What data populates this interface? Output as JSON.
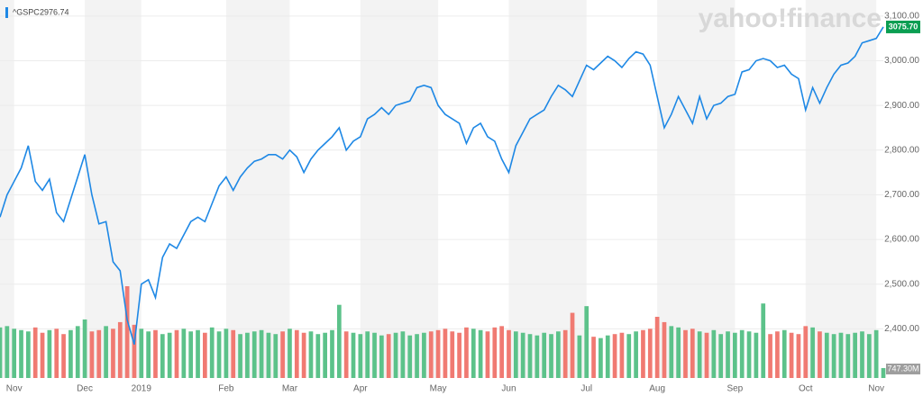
{
  "chart_data": {
    "type": "line",
    "watermark": "yahoo!finance",
    "categories": [
      null,
      null,
      "Nov",
      null,
      null,
      null,
      null,
      null,
      null,
      null,
      null,
      null,
      "Dec",
      null,
      null,
      null,
      null,
      null,
      null,
      null,
      "2019",
      null,
      null,
      null,
      null,
      null,
      null,
      null,
      null,
      null,
      null,
      null,
      "Feb",
      null,
      null,
      null,
      null,
      null,
      null,
      null,
      null,
      "Mar",
      null,
      null,
      null,
      null,
      null,
      null,
      null,
      null,
      null,
      "Apr",
      null,
      null,
      null,
      null,
      null,
      null,
      null,
      null,
      null,
      null,
      "May",
      null,
      null,
      null,
      null,
      null,
      null,
      null,
      null,
      null,
      "Jun",
      null,
      null,
      null,
      null,
      null,
      null,
      null,
      null,
      null,
      null,
      "Jul",
      null,
      null,
      null,
      null,
      null,
      null,
      null,
      null,
      null,
      "Aug",
      null,
      null,
      null,
      null,
      null,
      null,
      null,
      null,
      null,
      null,
      "Sep",
      null,
      null,
      null,
      null,
      null,
      null,
      null,
      null,
      null,
      "Oct",
      null,
      null,
      null,
      null,
      null,
      null,
      null,
      null,
      null,
      "Nov",
      null
    ],
    "series": [
      {
        "name": "^GSPC",
        "color": "#1e88e5",
        "values": [
          2650,
          2700,
          2730,
          2760,
          2810,
          2730,
          2710,
          2735,
          2660,
          2640,
          2690,
          2740,
          2790,
          2700,
          2635,
          2640,
          2550,
          2530,
          2420,
          2365,
          2500,
          2510,
          2470,
          2560,
          2590,
          2580,
          2610,
          2640,
          2650,
          2640,
          2680,
          2720,
          2740,
          2710,
          2740,
          2760,
          2775,
          2780,
          2790,
          2790,
          2780,
          2800,
          2785,
          2750,
          2780,
          2800,
          2815,
          2830,
          2850,
          2800,
          2820,
          2830,
          2870,
          2880,
          2895,
          2880,
          2900,
          2905,
          2910,
          2940,
          2945,
          2940,
          2900,
          2880,
          2870,
          2860,
          2815,
          2850,
          2860,
          2830,
          2820,
          2780,
          2750,
          2810,
          2840,
          2870,
          2880,
          2890,
          2920,
          2945,
          2935,
          2920,
          2955,
          2990,
          2980,
          2995,
          3010,
          3000,
          2985,
          3005,
          3020,
          3015,
          2990,
          2920,
          2850,
          2880,
          2920,
          2890,
          2860,
          2920,
          2870,
          2900,
          2905,
          2920,
          2925,
          2975,
          2980,
          3000,
          3005,
          3000,
          2985,
          2990,
          2970,
          2960,
          2890,
          2940,
          2905,
          2940,
          2970,
          2990,
          2995,
          3010,
          3040,
          3045,
          3050,
          3075.7
        ]
      }
    ],
    "legend_value": 2976.74,
    "price_tag": {
      "value": 3075.7,
      "label": "3075.70",
      "color": "#0b9e52"
    },
    "ylim": [
      2290,
      3136
    ],
    "yticks": [
      {
        "value": 2400,
        "label": "2,400.00"
      },
      {
        "value": 2500,
        "label": "2,500.00"
      },
      {
        "value": 2600,
        "label": "2,600.00"
      },
      {
        "value": 2700,
        "label": "2,700.00"
      },
      {
        "value": 2800,
        "label": "2,800.00"
      },
      {
        "value": 2900,
        "label": "2,900.00"
      },
      {
        "value": 3000,
        "label": "3,000.00"
      },
      {
        "value": 3100,
        "label": "3,100.00"
      }
    ],
    "grid": true,
    "band_color": "#f3f3f3",
    "volume": {
      "up_color": "#5cc28a",
      "down_color": "#f07a72",
      "tag": {
        "value": 747.3,
        "label": "747.30M"
      },
      "values": [
        3800,
        3900,
        3700,
        3600,
        3500,
        3800,
        3400,
        3600,
        3700,
        3300,
        3600,
        3900,
        4400,
        3500,
        3600,
        3900,
        3700,
        4200,
        6900,
        4000,
        3700,
        3500,
        3600,
        3300,
        3400,
        3600,
        3700,
        3500,
        3600,
        3400,
        3800,
        3500,
        3700,
        3600,
        3300,
        3400,
        3500,
        3600,
        3400,
        3300,
        3500,
        3700,
        3600,
        3400,
        3500,
        3300,
        3400,
        3600,
        5500,
        3500,
        3400,
        3300,
        3500,
        3400,
        3200,
        3300,
        3400,
        3500,
        3200,
        3300,
        3400,
        3500,
        3600,
        3700,
        3500,
        3400,
        3800,
        3700,
        3600,
        3500,
        3800,
        3900,
        3600,
        3500,
        3400,
        3300,
        3200,
        3400,
        3300,
        3500,
        3600,
        4900,
        3200,
        5400,
        3100,
        3000,
        3200,
        3300,
        3400,
        3300,
        3500,
        3600,
        3700,
        4600,
        4200,
        3900,
        3800,
        3600,
        3700,
        3500,
        3400,
        3600,
        3300,
        3500,
        3400,
        3600,
        3500,
        3400,
        5600,
        3300,
        3500,
        3600,
        3400,
        3300,
        3900,
        3800,
        3500,
        3400,
        3300,
        3400,
        3300,
        3400,
        3500,
        3300,
        3600,
        747.3
      ]
    }
  }
}
